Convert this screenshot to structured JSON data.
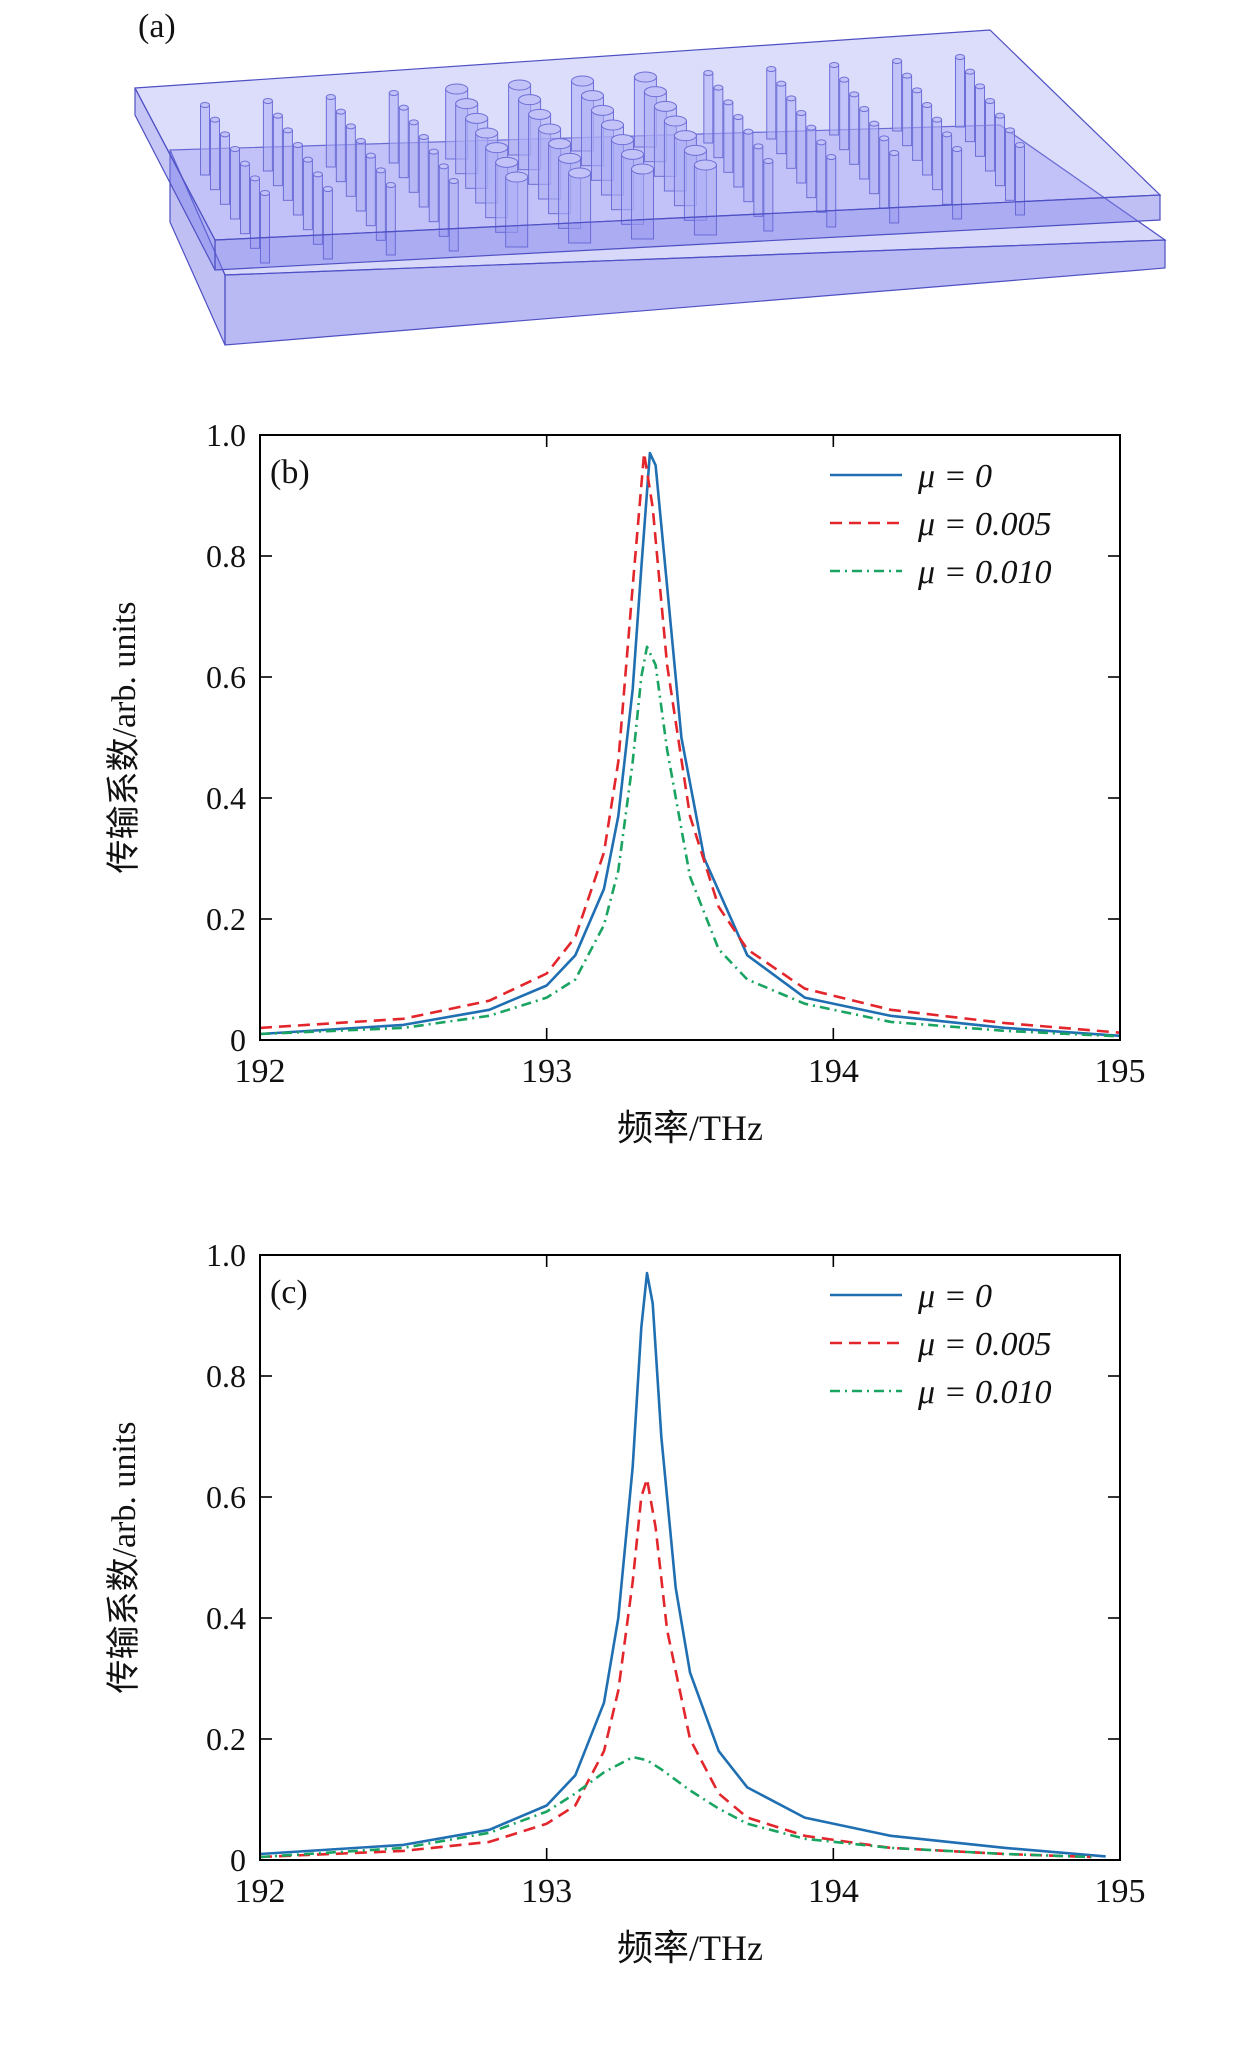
{
  "panel_a": {
    "label": "(a)"
  },
  "colors": {
    "blue": "#1f6fb2",
    "red": "#e3262b",
    "green": "#1aa461",
    "slab_fill": "#8f90f0",
    "slab_edge": "#4e50c4"
  },
  "chart_data": [
    {
      "id": "b",
      "type": "line",
      "panel_label": "(b)",
      "xlabel": "频率/THz",
      "ylabel": "传输系数/arb. units",
      "xlim": [
        192,
        195
      ],
      "ylim": [
        0,
        1.0
      ],
      "xticks": [
        192,
        193,
        194,
        195
      ],
      "xtick_labels": [
        "192",
        "193",
        "194",
        "195"
      ],
      "yticks": [
        0,
        0.2,
        0.4,
        0.6,
        0.8,
        1.0
      ],
      "ytick_labels": [
        "0",
        "0.2",
        "0.4",
        "0.6",
        "0.8",
        "1.0"
      ],
      "grid": false,
      "legend_position": "top-right",
      "series": [
        {
          "name": "μ = 0",
          "color": "#1f6fb2",
          "dash": "solid",
          "x": [
            192.0,
            192.5,
            192.8,
            193.0,
            193.1,
            193.2,
            193.25,
            193.3,
            193.33,
            193.36,
            193.38,
            193.42,
            193.47,
            193.55,
            193.7,
            193.9,
            194.2,
            194.6,
            195.0
          ],
          "y": [
            0.01,
            0.025,
            0.05,
            0.09,
            0.14,
            0.25,
            0.37,
            0.58,
            0.78,
            0.97,
            0.95,
            0.75,
            0.5,
            0.3,
            0.14,
            0.07,
            0.04,
            0.02,
            0.007
          ]
        },
        {
          "name": "μ = 0.005",
          "color": "#e3262b",
          "dash": "dashed",
          "x": [
            192.0,
            192.5,
            192.8,
            193.0,
            193.1,
            193.2,
            193.25,
            193.3,
            193.34,
            193.37,
            193.42,
            193.5,
            193.6,
            193.7,
            193.9,
            194.2,
            194.6,
            195.0
          ],
          "y": [
            0.02,
            0.035,
            0.065,
            0.11,
            0.17,
            0.31,
            0.46,
            0.75,
            0.97,
            0.88,
            0.62,
            0.37,
            0.22,
            0.15,
            0.085,
            0.05,
            0.028,
            0.012
          ]
        },
        {
          "name": "μ = 0.010",
          "color": "#1aa461",
          "dash": "dashdot",
          "x": [
            192.0,
            192.5,
            192.8,
            193.0,
            193.1,
            193.2,
            193.25,
            193.3,
            193.33,
            193.35,
            193.38,
            193.42,
            193.5,
            193.6,
            193.7,
            193.9,
            194.2,
            194.6,
            195.0
          ],
          "y": [
            0.01,
            0.02,
            0.04,
            0.07,
            0.1,
            0.19,
            0.28,
            0.46,
            0.6,
            0.65,
            0.62,
            0.48,
            0.27,
            0.15,
            0.1,
            0.06,
            0.03,
            0.015,
            0.006
          ]
        }
      ]
    },
    {
      "id": "c",
      "type": "line",
      "panel_label": "(c)",
      "xlabel": "频率/THz",
      "ylabel": "传输系数/arb. units",
      "xlim": [
        192,
        195
      ],
      "ylim": [
        0,
        1.0
      ],
      "xticks": [
        192,
        193,
        194,
        195
      ],
      "xtick_labels": [
        "192",
        "193",
        "194",
        "195"
      ],
      "yticks": [
        0,
        0.2,
        0.4,
        0.6,
        0.8,
        1.0
      ],
      "ytick_labels": [
        "0",
        "0.2",
        "0.4",
        "0.6",
        "0.8",
        "1.0"
      ],
      "grid": false,
      "legend_position": "top-right",
      "series": [
        {
          "name": "μ = 0",
          "color": "#1f6fb2",
          "dash": "solid",
          "x": [
            192.0,
            192.5,
            192.8,
            193.0,
            193.1,
            193.2,
            193.25,
            193.3,
            193.33,
            193.35,
            193.37,
            193.4,
            193.45,
            193.5,
            193.6,
            193.7,
            193.9,
            194.2,
            194.6,
            194.95
          ],
          "y": [
            0.01,
            0.025,
            0.05,
            0.09,
            0.14,
            0.26,
            0.4,
            0.65,
            0.88,
            0.97,
            0.92,
            0.7,
            0.45,
            0.31,
            0.18,
            0.12,
            0.07,
            0.04,
            0.02,
            0.006
          ]
        },
        {
          "name": "μ = 0.005",
          "color": "#e3262b",
          "dash": "dashed",
          "x": [
            192.0,
            192.5,
            192.8,
            193.0,
            193.1,
            193.2,
            193.25,
            193.3,
            193.33,
            193.35,
            193.38,
            193.42,
            193.5,
            193.6,
            193.7,
            193.9,
            194.2,
            194.6,
            194.9
          ],
          "y": [
            0.005,
            0.015,
            0.03,
            0.06,
            0.09,
            0.18,
            0.28,
            0.46,
            0.6,
            0.63,
            0.55,
            0.38,
            0.2,
            0.11,
            0.07,
            0.04,
            0.02,
            0.01,
            0.005
          ]
        },
        {
          "name": "μ = 0.010",
          "color": "#1aa461",
          "dash": "dashdot",
          "x": [
            192.0,
            192.5,
            192.8,
            193.0,
            193.1,
            193.2,
            193.3,
            193.35,
            193.4,
            193.5,
            193.6,
            193.7,
            193.9,
            194.2,
            194.6,
            194.9
          ],
          "y": [
            0.005,
            0.02,
            0.045,
            0.08,
            0.11,
            0.145,
            0.17,
            0.165,
            0.15,
            0.115,
            0.085,
            0.06,
            0.035,
            0.02,
            0.01,
            0.005
          ]
        }
      ]
    }
  ]
}
